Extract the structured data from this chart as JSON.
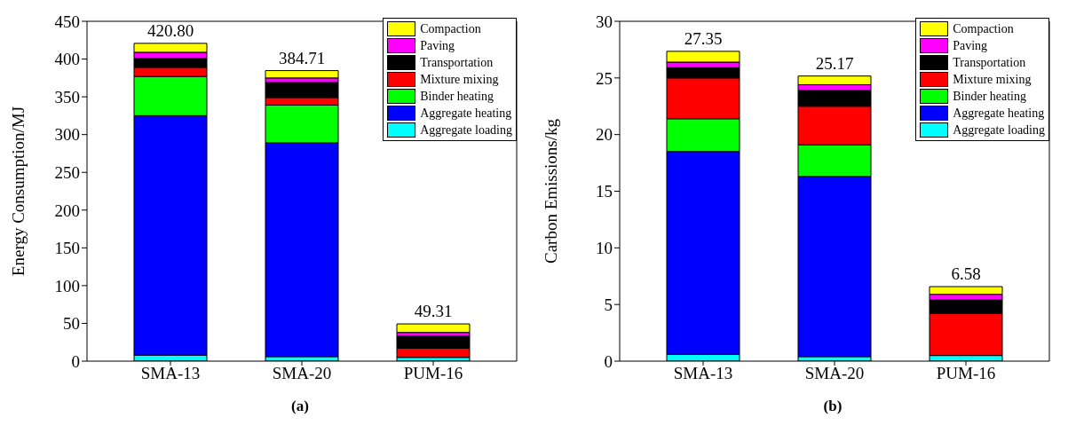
{
  "chart_data": [
    {
      "type": "bar",
      "stacked": true,
      "ylabel": "Energy Consumption/MJ",
      "categories": [
        "SMA-13",
        "SMA-20",
        "PUM-16"
      ],
      "ylim": [
        0,
        450
      ],
      "yticks": [
        0,
        50,
        100,
        150,
        200,
        250,
        300,
        350,
        400,
        450
      ],
      "legend": "top right",
      "totals": [
        "420.80",
        "384.71",
        "49.31"
      ],
      "annotations": [
        "(a)"
      ],
      "series": [
        {
          "name": "Aggregate loading",
          "color": "#00ffff",
          "values": [
            8,
            6,
            5
          ]
        },
        {
          "name": "Aggregate heating",
          "color": "#0000ff",
          "values": [
            317,
            283,
            0
          ]
        },
        {
          "name": "Binder heating",
          "color": "#00ff00",
          "values": [
            52,
            50,
            0
          ]
        },
        {
          "name": "Mixture mixing",
          "color": "#ff0000",
          "values": [
            12,
            10,
            12
          ]
        },
        {
          "name": "Transportation",
          "color": "#000000",
          "values": [
            12,
            20,
            16
          ]
        },
        {
          "name": "Paving",
          "color": "#ff00ff",
          "values": [
            8,
            6,
            5
          ]
        },
        {
          "name": "Compaction",
          "color": "#ffff00",
          "values": [
            11.8,
            9.71,
            11.31
          ]
        }
      ]
    },
    {
      "type": "bar",
      "stacked": true,
      "ylabel": "Carbon Emissions/kg",
      "categories": [
        "SMA-13",
        "SMA-20",
        "PUM-16"
      ],
      "ylim": [
        0,
        30
      ],
      "yticks": [
        0,
        5,
        10,
        15,
        20,
        25,
        30
      ],
      "legend": "top right",
      "totals": [
        "27.35",
        "25.17",
        "6.58"
      ],
      "annotations": [
        "(b)"
      ],
      "series": [
        {
          "name": "Aggregate loading",
          "color": "#00ffff",
          "values": [
            0.6,
            0.4,
            0.5
          ]
        },
        {
          "name": "Aggregate heating",
          "color": "#0000ff",
          "values": [
            17.9,
            15.9,
            0
          ]
        },
        {
          "name": "Binder heating",
          "color": "#00ff00",
          "values": [
            2.9,
            2.8,
            0
          ]
        },
        {
          "name": "Mixture mixing",
          "color": "#ff0000",
          "values": [
            3.6,
            3.4,
            3.7
          ]
        },
        {
          "name": "Transportation",
          "color": "#000000",
          "values": [
            0.9,
            1.4,
            1.2
          ]
        },
        {
          "name": "Paving",
          "color": "#ff00ff",
          "values": [
            0.5,
            0.5,
            0.5
          ]
        },
        {
          "name": "Compaction",
          "color": "#ffff00",
          "values": [
            0.95,
            0.77,
            0.68
          ]
        }
      ]
    }
  ]
}
